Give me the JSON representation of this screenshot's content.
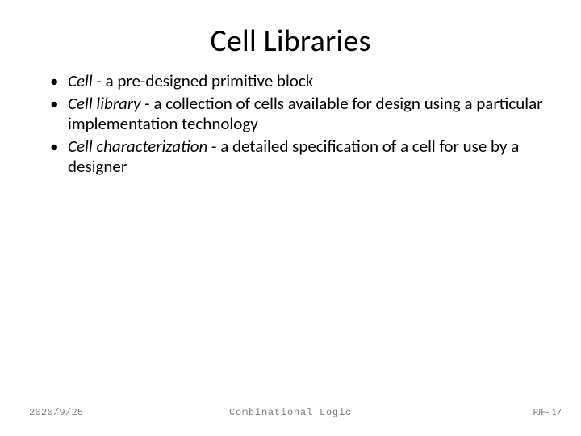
{
  "slide": {
    "title": "Cell Libraries",
    "title_fontsize": 38,
    "title_color": "#000000",
    "bullets": [
      {
        "term": "Cell",
        "rest": " - a pre-designed primitive block"
      },
      {
        "term": "Cell library",
        "rest": " - a collection of cells available for design using a particular implementation technology"
      },
      {
        "term": "Cell characterization",
        "rest": " - a detailed specification of a cell for use by a designer"
      }
    ],
    "body_fontsize": 21,
    "body_color": "#000000",
    "background_color": "#ffffff"
  },
  "footer": {
    "date": "2020/9/25",
    "center": "Combinational Logic",
    "page": "PJF- 17",
    "color": "#7e7e7e",
    "fontsize": 12
  }
}
